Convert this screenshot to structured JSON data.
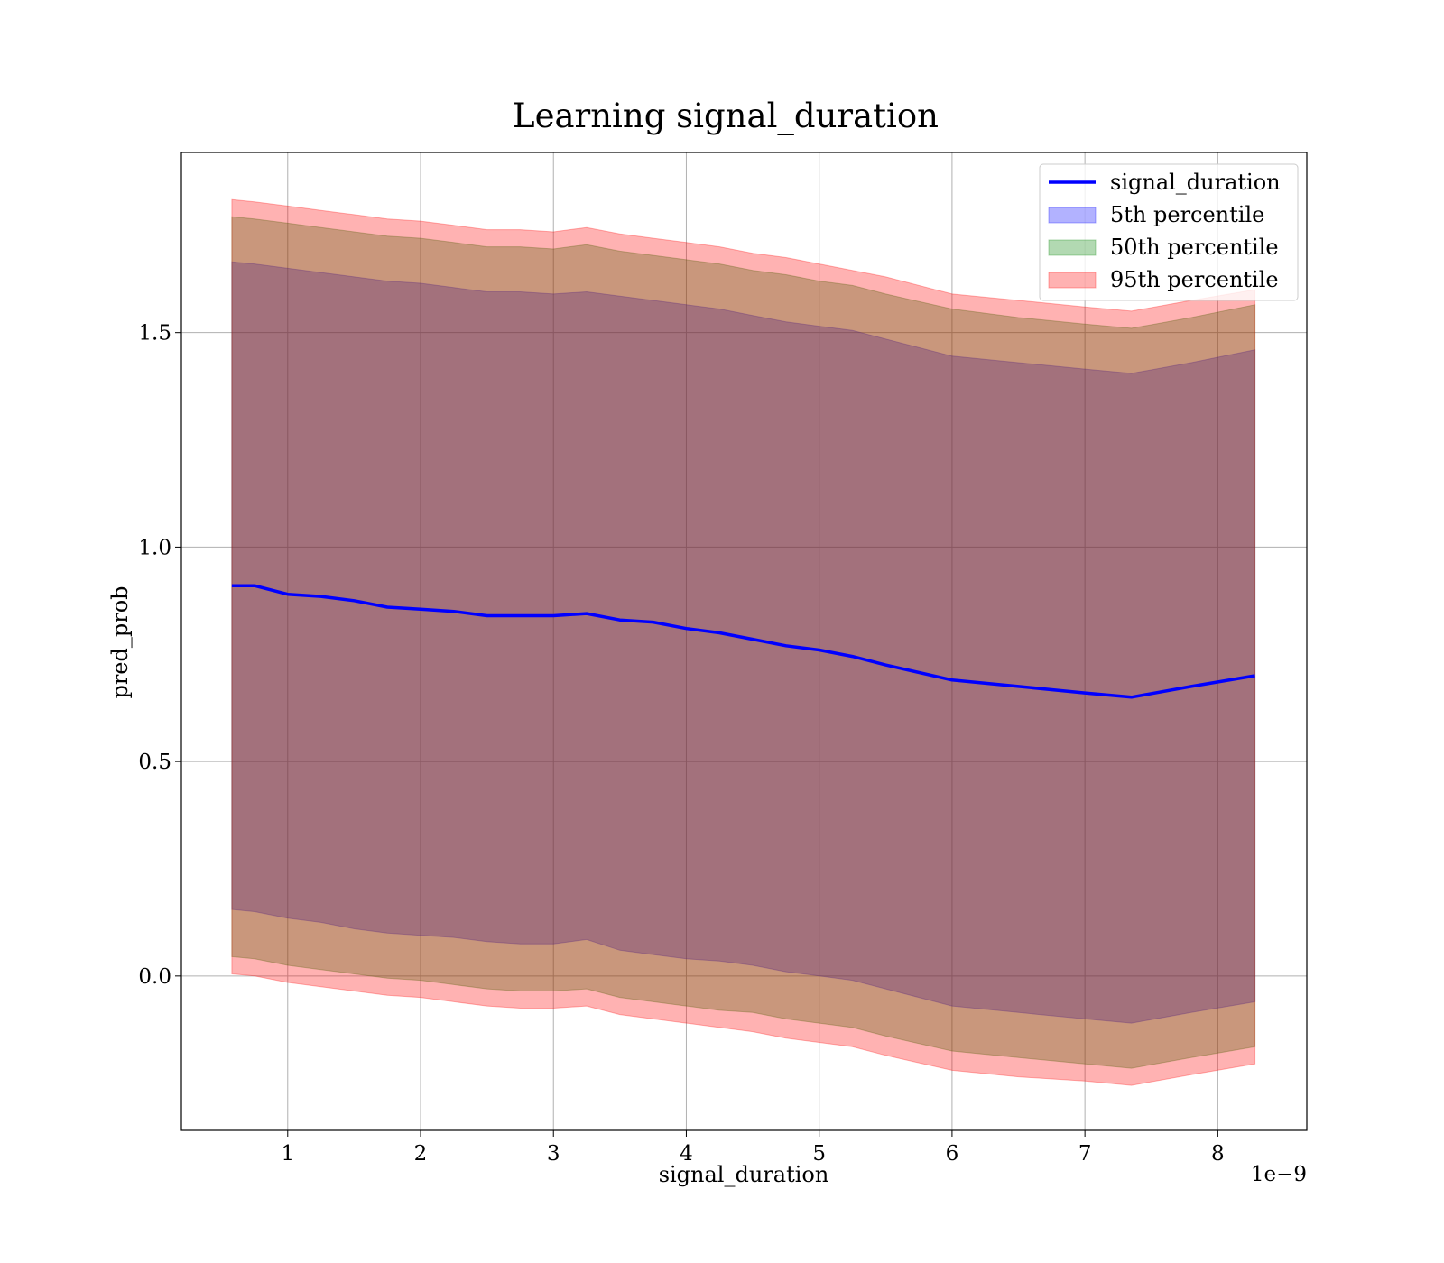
{
  "chart_data": {
    "type": "area",
    "title": "Learning signal_duration",
    "xlabel": "signal_duration",
    "ylabel": "pred_prob",
    "x_offset_label": "1e−9",
    "xlim": [
      0.2,
      8.67
    ],
    "ylim": [
      -0.36,
      1.92
    ],
    "xticks": [
      1,
      2,
      3,
      4,
      5,
      6,
      7,
      8
    ],
    "xtick_labels": [
      "1",
      "2",
      "3",
      "4",
      "5",
      "6",
      "7",
      "8"
    ],
    "yticks": [
      0.0,
      0.5,
      1.0,
      1.5
    ],
    "ytick_labels": [
      "0.0",
      "0.5",
      "1.0",
      "1.5"
    ],
    "grid": true,
    "legend_position": "top-right",
    "colors": {
      "line": "#0000ff",
      "p5": "#0000ff",
      "p50": "#008000",
      "p95": "#ff0000"
    },
    "x": [
      0.58,
      0.75,
      1.0,
      1.25,
      1.5,
      1.75,
      2.0,
      2.25,
      2.5,
      2.75,
      3.0,
      3.25,
      3.5,
      3.75,
      4.0,
      4.25,
      4.5,
      4.75,
      5.0,
      5.25,
      5.5,
      6.0,
      6.5,
      7.0,
      7.35,
      7.8,
      8.28
    ],
    "series": [
      {
        "name": "signal_duration",
        "kind": "line",
        "values": [
          0.91,
          0.91,
          0.89,
          0.885,
          0.875,
          0.86,
          0.855,
          0.85,
          0.84,
          0.84,
          0.84,
          0.845,
          0.83,
          0.825,
          0.81,
          0.8,
          0.785,
          0.77,
          0.76,
          0.745,
          0.725,
          0.69,
          0.675,
          0.66,
          0.65,
          0.675,
          0.7
        ]
      },
      {
        "name": "5th percentile",
        "kind": "band",
        "lower": [
          0.155,
          0.15,
          0.135,
          0.125,
          0.11,
          0.1,
          0.095,
          0.09,
          0.08,
          0.075,
          0.075,
          0.085,
          0.06,
          0.05,
          0.04,
          0.035,
          0.025,
          0.01,
          0.0,
          -0.01,
          -0.03,
          -0.07,
          -0.085,
          -0.1,
          -0.11,
          -0.085,
          -0.06
        ],
        "upper": [
          1.665,
          1.66,
          1.65,
          1.64,
          1.63,
          1.62,
          1.615,
          1.605,
          1.595,
          1.595,
          1.59,
          1.595,
          1.585,
          1.575,
          1.565,
          1.555,
          1.54,
          1.525,
          1.515,
          1.505,
          1.485,
          1.445,
          1.43,
          1.415,
          1.405,
          1.43,
          1.46
        ]
      },
      {
        "name": "50th percentile",
        "kind": "band",
        "lower": [
          0.045,
          0.04,
          0.025,
          0.015,
          0.005,
          -0.005,
          -0.01,
          -0.02,
          -0.03,
          -0.035,
          -0.035,
          -0.03,
          -0.05,
          -0.06,
          -0.07,
          -0.08,
          -0.085,
          -0.1,
          -0.11,
          -0.12,
          -0.14,
          -0.175,
          -0.19,
          -0.205,
          -0.215,
          -0.19,
          -0.165
        ],
        "upper": [
          1.77,
          1.765,
          1.755,
          1.745,
          1.735,
          1.725,
          1.72,
          1.71,
          1.7,
          1.7,
          1.695,
          1.705,
          1.69,
          1.68,
          1.67,
          1.66,
          1.645,
          1.635,
          1.62,
          1.61,
          1.59,
          1.555,
          1.535,
          1.52,
          1.51,
          1.535,
          1.565
        ]
      },
      {
        "name": "95th percentile",
        "kind": "band",
        "lower": [
          0.005,
          0.0,
          -0.015,
          -0.025,
          -0.035,
          -0.045,
          -0.05,
          -0.06,
          -0.07,
          -0.075,
          -0.075,
          -0.07,
          -0.09,
          -0.1,
          -0.11,
          -0.12,
          -0.13,
          -0.145,
          -0.155,
          -0.165,
          -0.185,
          -0.22,
          -0.235,
          -0.245,
          -0.255,
          -0.23,
          -0.205
        ],
        "upper": [
          1.81,
          1.805,
          1.795,
          1.785,
          1.775,
          1.765,
          1.76,
          1.75,
          1.74,
          1.74,
          1.735,
          1.745,
          1.73,
          1.72,
          1.71,
          1.7,
          1.685,
          1.675,
          1.66,
          1.645,
          1.63,
          1.59,
          1.575,
          1.56,
          1.55,
          1.575,
          1.6
        ]
      }
    ]
  }
}
